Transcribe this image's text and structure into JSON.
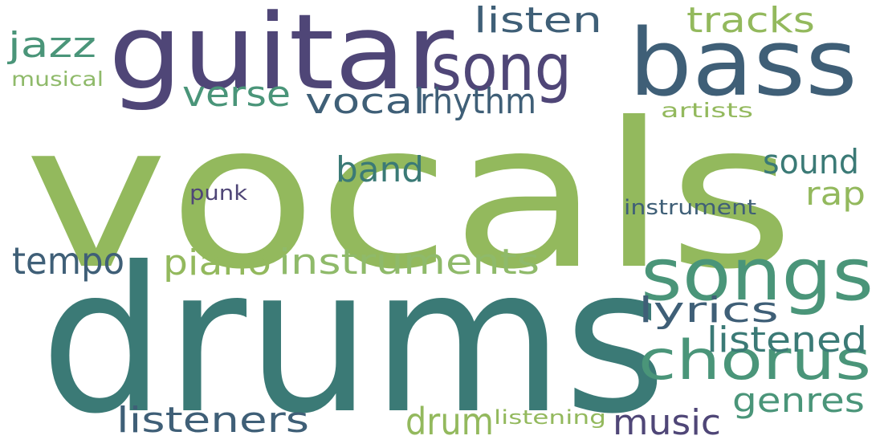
{
  "palette": {
    "green": "#93b95d",
    "teal": "#3b7a76",
    "indigo": "#4f4677",
    "slate": "#3f5f77",
    "seagreen": "#4a9579",
    "lightgreen": "#8fba6a"
  },
  "words": [
    {
      "text": "vocals",
      "color": "#93b95d"
    },
    {
      "text": "drums",
      "color": "#3b7a76"
    },
    {
      "text": "guitar",
      "color": "#4f4677"
    },
    {
      "text": "bass",
      "color": "#3f5f77"
    },
    {
      "text": "song",
      "color": "#4f4677"
    },
    {
      "text": "songs",
      "color": "#4a9579"
    },
    {
      "text": "chorus",
      "color": "#4a9579"
    },
    {
      "text": "instruments",
      "color": "#8fba6a"
    },
    {
      "text": "listeners",
      "color": "#3f5f77"
    },
    {
      "text": "music",
      "color": "#4f4677"
    },
    {
      "text": "drum",
      "color": "#93b95d"
    },
    {
      "text": "tempo",
      "color": "#3f5f77"
    },
    {
      "text": "piano",
      "color": "#93b95d"
    },
    {
      "text": "lyrics",
      "color": "#3f5f77"
    },
    {
      "text": "listened",
      "color": "#3b7a76"
    },
    {
      "text": "genres",
      "color": "#4a9579"
    },
    {
      "text": "band",
      "color": "#3b7a76"
    },
    {
      "text": "sound",
      "color": "#3b7a76"
    },
    {
      "text": "rap",
      "color": "#93b95d"
    },
    {
      "text": "listen",
      "color": "#3f5f77"
    },
    {
      "text": "tracks",
      "color": "#93b95d"
    },
    {
      "text": "jazz",
      "color": "#4a9579"
    },
    {
      "text": "verse",
      "color": "#4a9579"
    },
    {
      "text": "vocal",
      "color": "#3f5f77"
    },
    {
      "text": "rhythm",
      "color": "#3f5f77"
    },
    {
      "text": "musical",
      "color": "#8fba6a"
    },
    {
      "text": "artists",
      "color": "#93b95d"
    },
    {
      "text": "punk",
      "color": "#4f4677"
    },
    {
      "text": "instrument",
      "color": "#3f5f77"
    },
    {
      "text": "listening",
      "color": "#93b95d"
    }
  ]
}
